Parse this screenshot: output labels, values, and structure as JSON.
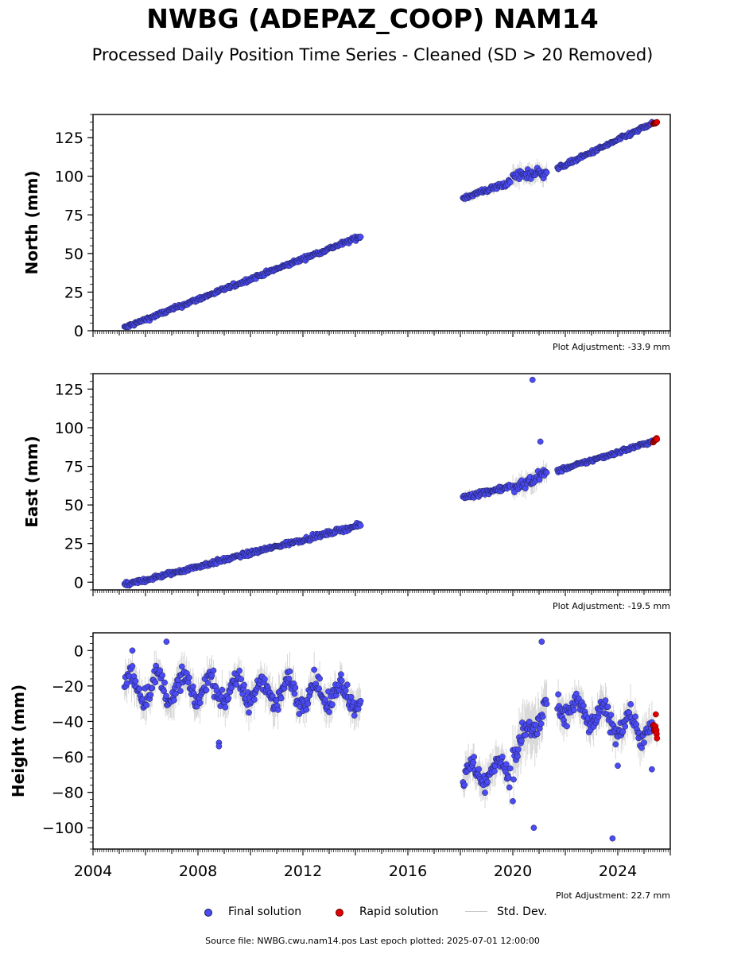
{
  "title": "NWBG (ADEPAZ_COOP) NAM14",
  "subtitle": "Processed Daily Position Time Series - Cleaned (SD > 20 Removed)",
  "footer": {
    "source_label": "Source file: NWBG.cwu.nam14.pos  Last epoch plotted: 2025-07-01 12:00:00"
  },
  "legend": {
    "final": "Final solution",
    "rapid": "Rapid solution",
    "stddev": "Std. Dev."
  },
  "colors": {
    "final": "#4b4bf5",
    "rapid": "#e00000",
    "marker_edge": "#1a1a4a",
    "stddev": "#b8b8b8"
  },
  "chart_data": [
    {
      "type": "scatter",
      "ylabel": "North (mm)",
      "xlim": [
        2004,
        2026
      ],
      "ylim": [
        0,
        140
      ],
      "yticks": [
        0,
        25,
        50,
        75,
        100,
        125
      ],
      "adjustment_label": "Plot Adjustment: -33.9 mm",
      "series": [
        {
          "name": "Final solution",
          "segments": [
            {
              "x0": 2005.2,
              "x1": 2014.2,
              "y0": 2,
              "y1": 61,
              "noise": 1.8
            },
            {
              "x0": 2018.1,
              "x1": 2019.9,
              "y0": 86,
              "y1": 96,
              "noise": 2.5
            },
            {
              "x0": 2020.0,
              "x1": 2021.3,
              "y0": 100,
              "y1": 103,
              "noise": 5
            },
            {
              "x0": 2021.7,
              "x1": 2025.3,
              "y0": 105,
              "y1": 134,
              "noise": 1.8
            }
          ],
          "extra": []
        },
        {
          "name": "Rapid solution",
          "segments": [
            {
              "x0": 2025.35,
              "x1": 2025.5,
              "y0": 134,
              "y1": 135,
              "noise": 0.8
            }
          ],
          "extra": []
        }
      ]
    },
    {
      "type": "scatter",
      "ylabel": "East (mm)",
      "xlim": [
        2004,
        2026
      ],
      "ylim": [
        -5,
        135
      ],
      "yticks": [
        0,
        25,
        50,
        75,
        100,
        125
      ],
      "adjustment_label": "Plot Adjustment: -19.5 mm",
      "series": [
        {
          "name": "Final solution",
          "segments": [
            {
              "x0": 2005.2,
              "x1": 2014.2,
              "y0": -2,
              "y1": 37,
              "noise": 2
            },
            {
              "x0": 2018.1,
              "x1": 2019.9,
              "y0": 55,
              "y1": 62,
              "noise": 2.5
            },
            {
              "x0": 2020.0,
              "x1": 2021.3,
              "y0": 60,
              "y1": 71,
              "noise": 5
            },
            {
              "x0": 2021.7,
              "x1": 2025.3,
              "y0": 72,
              "y1": 91,
              "noise": 1.8
            }
          ],
          "extra": [
            [
              2020.75,
              131
            ],
            [
              2021.05,
              91
            ]
          ]
        },
        {
          "name": "Rapid solution",
          "segments": [
            {
              "x0": 2025.35,
              "x1": 2025.5,
              "y0": 91,
              "y1": 93,
              "noise": 1
            }
          ],
          "extra": []
        }
      ]
    },
    {
      "type": "scatter",
      "ylabel": "Height (mm)",
      "xlabel": "",
      "xlim": [
        2004,
        2026
      ],
      "ylim": [
        -112,
        10
      ],
      "yticks": [
        0,
        -20,
        -40,
        -60,
        -80,
        -100
      ],
      "xticks": [
        2004,
        2008,
        2012,
        2016,
        2020,
        2024
      ],
      "adjustment_label": "Plot Adjustment: 22.7 mm",
      "series": [
        {
          "name": "Final solution",
          "segments": [
            {
              "x0": 2005.2,
              "x1": 2014.2,
              "y0": -20,
              "y1": -25,
              "noise": 8,
              "seasonal": 7
            },
            {
              "x0": 2018.1,
              "x1": 2019.9,
              "y0": -72,
              "y1": -65,
              "noise": 8,
              "seasonal": 6
            },
            {
              "x0": 2020.0,
              "x1": 2021.3,
              "y0": -60,
              "y1": -30,
              "noise": 12,
              "seasonal": 5
            },
            {
              "x0": 2021.7,
              "x1": 2025.3,
              "y0": -32,
              "y1": -45,
              "noise": 8,
              "seasonal": 6
            }
          ],
          "extra": [
            [
              2005.5,
              0
            ],
            [
              2006.8,
              5
            ],
            [
              2008.8,
              -52
            ],
            [
              2008.8,
              -54
            ],
            [
              2020.0,
              -85
            ],
            [
              2020.8,
              -100
            ],
            [
              2021.1,
              5
            ],
            [
              2023.8,
              -106
            ],
            [
              2024.0,
              -65
            ],
            [
              2025.3,
              -67
            ]
          ]
        },
        {
          "name": "Rapid solution",
          "segments": [
            {
              "x0": 2025.35,
              "x1": 2025.5,
              "y0": -43,
              "y1": -47,
              "noise": 4
            }
          ],
          "extra": [
            [
              2025.45,
              -36
            ]
          ]
        }
      ]
    }
  ]
}
